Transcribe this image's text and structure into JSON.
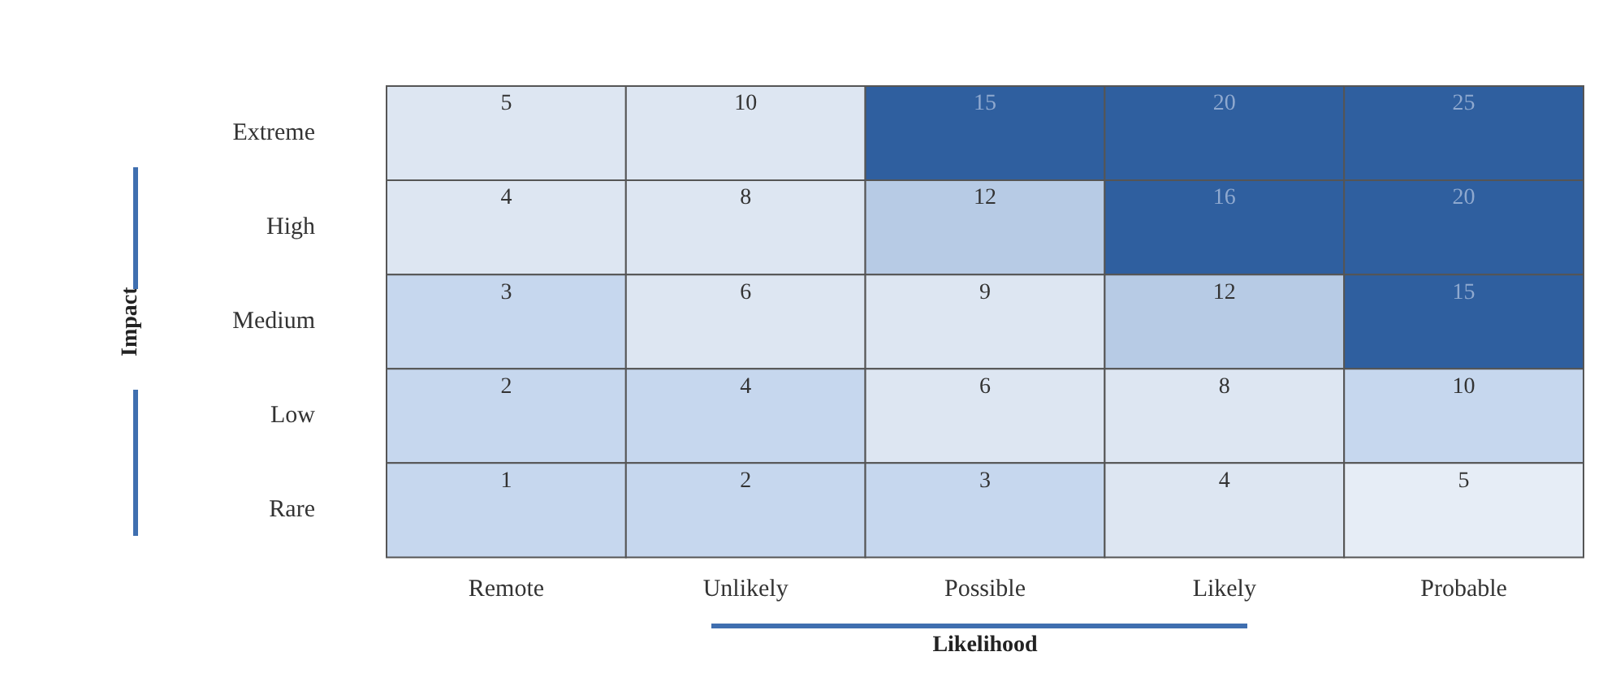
{
  "chart_data": {
    "type": "heatmap",
    "xlabel": "Likelihood",
    "ylabel": "Impact",
    "data_labels": true,
    "categories": [
      "Remote",
      "Unlikely",
      "Possible",
      "Likely",
      "Probable"
    ],
    "y_categories": [
      "Extreme",
      "High",
      "Medium",
      "Low",
      "Rare"
    ],
    "cells": [
      [
        5,
        10,
        15,
        20,
        25
      ],
      [
        4,
        8,
        12,
        16,
        20
      ],
      [
        3,
        6,
        9,
        12,
        15
      ],
      [
        2,
        4,
        6,
        8,
        10
      ],
      [
        1,
        2,
        3,
        4,
        5
      ]
    ],
    "colors": [
      [
        "#dde6f2",
        "#dde6f2",
        "#2f5f9f",
        "#2f5f9f",
        "#2f5f9f"
      ],
      [
        "#dde6f2",
        "#dde6f2",
        "#b7cbe5",
        "#2f5f9f",
        "#2f5f9f"
      ],
      [
        "#c6d7ee",
        "#dde6f2",
        "#dde6f2",
        "#b7cbe5",
        "#2f5f9f"
      ],
      [
        "#c6d7ee",
        "#c6d7ee",
        "#dde6f2",
        "#dde6f2",
        "#c6d7ee"
      ],
      [
        "#c6d7ee",
        "#c6d7ee",
        "#c6d7ee",
        "#dde6f2",
        "#e6edf6"
      ]
    ]
  }
}
